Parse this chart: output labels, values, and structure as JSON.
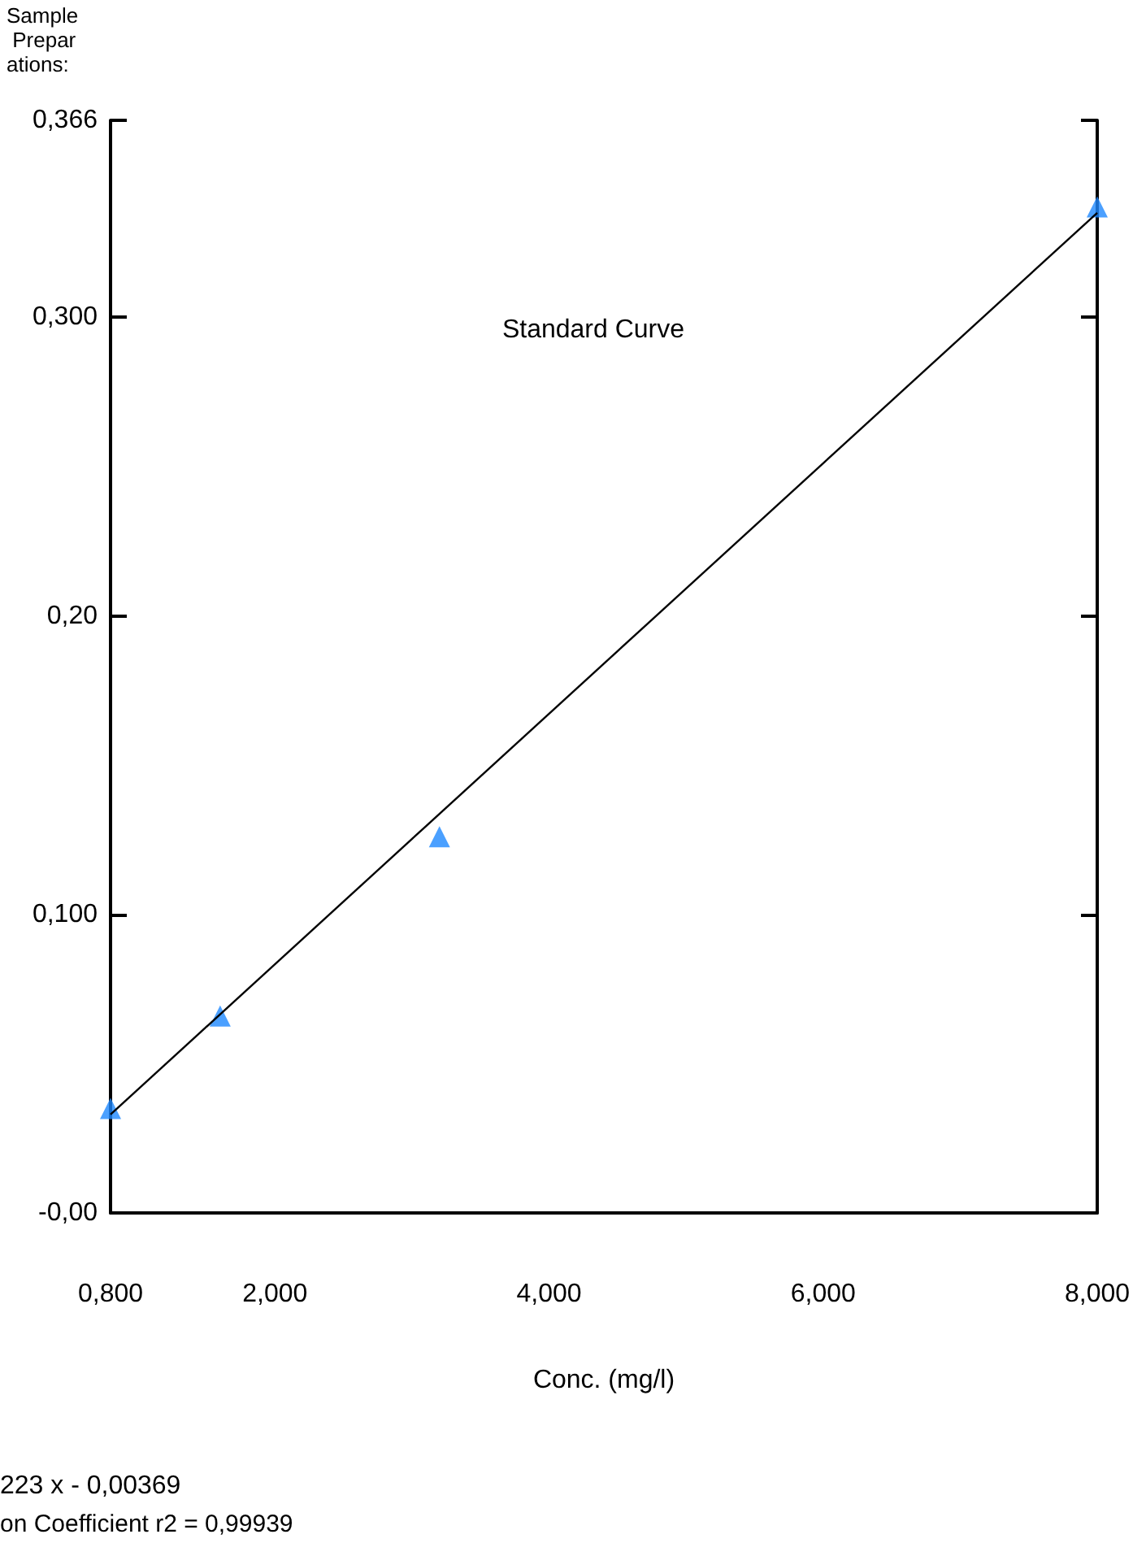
{
  "chart_data": {
    "type": "scatter",
    "title": "Standard Curve",
    "xlabel": "Conc. (mg/l)",
    "annotations": [
      "Sample Preparations:",
      "223 x - 0,00369",
      "on Coefficient r2 = 0,99939"
    ],
    "series": [
      {
        "color": "#1e88ff",
        "x": [
          0.8,
          1.6,
          3.2,
          8
        ],
        "values": [
          0.035,
          0.066,
          0.126,
          0.337
        ],
        "marker": "triangle"
      },
      {
        "type": "line",
        "color": "#000000",
        "x": [
          0.8,
          8
        ],
        "values": [
          0.033,
          0.335
        ],
        "marker": "none",
        "line_style": "solid"
      }
    ],
    "xlim": [
      0.8,
      8
    ],
    "xticks": [
      {
        "value": 0.8,
        "label": "0,800"
      },
      {
        "value": 2,
        "label": "2,000"
      },
      {
        "value": 4,
        "label": "4,000"
      },
      {
        "value": 6,
        "label": "6,000"
      },
      {
        "value": 8,
        "label": "8,000"
      }
    ],
    "ylim": [
      0,
      0.366
    ],
    "yticks": [
      {
        "value": 0,
        "label": "-0,00"
      },
      {
        "value": 0.1,
        "label": "0,100"
      },
      {
        "value": 0.2,
        "label": "0,20"
      },
      {
        "value": 0.3,
        "label": "0,300"
      },
      {
        "value": 0.366,
        "label": "0,366"
      }
    ],
    "grid": false
  }
}
